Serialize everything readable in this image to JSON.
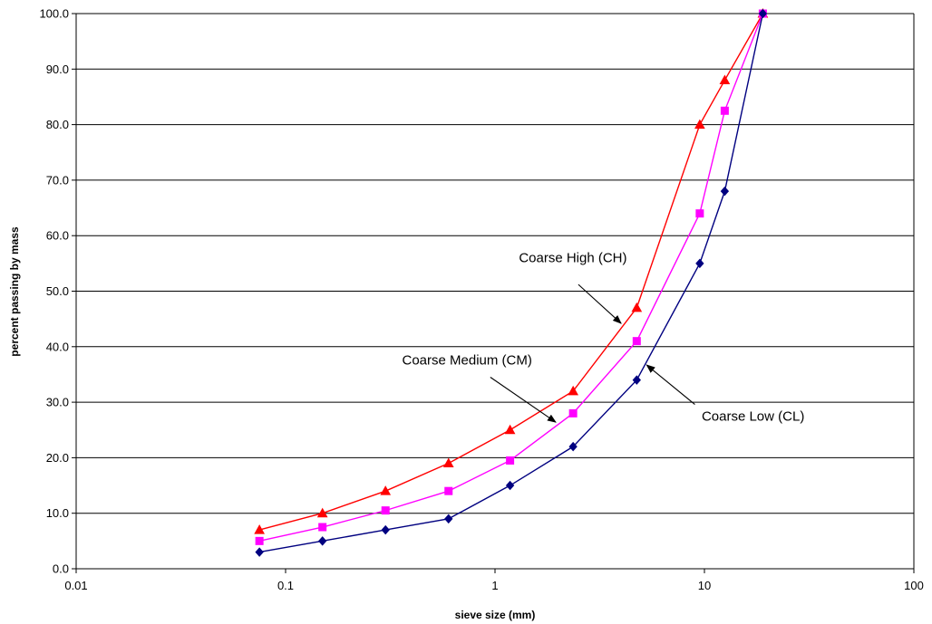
{
  "chart_data": {
    "type": "line",
    "xlabel": "sieve size (mm)",
    "ylabel": "percent passing by mass",
    "x_scale": "log",
    "xlim": [
      0.01,
      100
    ],
    "ylim": [
      0,
      100
    ],
    "x_ticks": [
      {
        "value": 0.01,
        "label": "0.01"
      },
      {
        "value": 0.1,
        "label": "0.1"
      },
      {
        "value": 1,
        "label": "1"
      },
      {
        "value": 10,
        "label": "10"
      },
      {
        "value": 100,
        "label": "100"
      }
    ],
    "y_ticks": [
      {
        "value": 0,
        "label": "0.0"
      },
      {
        "value": 10,
        "label": "10.0"
      },
      {
        "value": 20,
        "label": "20.0"
      },
      {
        "value": 30,
        "label": "30.0"
      },
      {
        "value": 40,
        "label": "40.0"
      },
      {
        "value": 50,
        "label": "50.0"
      },
      {
        "value": 60,
        "label": "60.0"
      },
      {
        "value": 70,
        "label": "70.0"
      },
      {
        "value": 80,
        "label": "80.0"
      },
      {
        "value": 90,
        "label": "90.0"
      },
      {
        "value": 100,
        "label": "100.0"
      }
    ],
    "grid": "horizontal",
    "x": [
      0.075,
      0.15,
      0.3,
      0.6,
      1.18,
      2.36,
      4.75,
      9.5,
      12.5,
      19
    ],
    "series": [
      {
        "key": "ch",
        "color": "#ff0000",
        "marker": "triangle",
        "values": [
          7,
          10,
          14,
          19,
          25,
          32,
          47,
          80,
          88,
          100
        ]
      },
      {
        "key": "cm",
        "color": "#ff00ff",
        "marker": "square",
        "values": [
          5,
          7.5,
          10.5,
          14,
          19.5,
          28,
          41,
          64,
          82.5,
          100
        ]
      },
      {
        "key": "cl",
        "color": "#000080",
        "marker": "diamond",
        "values": [
          3,
          5,
          7,
          9,
          15,
          22,
          34,
          55,
          68,
          100
        ]
      }
    ],
    "annotations": [
      {
        "series": "ch",
        "text": "Coarse High (CH)",
        "text_at": [
          1.3,
          55.2
        ],
        "arrow_from": [
          2.5,
          51.2
        ],
        "arrow_to": [
          4.0,
          44.2
        ]
      },
      {
        "series": "cm",
        "text": "Coarse Medium (CM)",
        "text_at": [
          0.36,
          36.8
        ],
        "arrow_from": [
          0.95,
          34.5
        ],
        "arrow_to": [
          1.95,
          26.4
        ]
      },
      {
        "series": "cl",
        "text": "Coarse Low (CL)",
        "text_at": [
          9.7,
          26.7
        ],
        "arrow_from": [
          9.0,
          29.6
        ],
        "arrow_to": [
          5.3,
          36.7
        ]
      }
    ]
  }
}
